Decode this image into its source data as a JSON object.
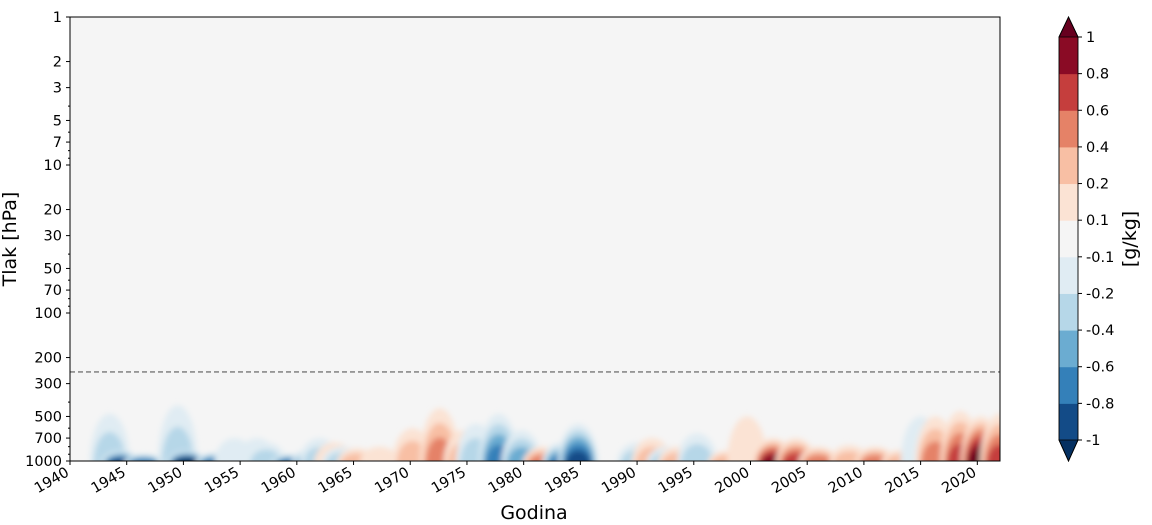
{
  "chart_data": {
    "type": "heatmap",
    "xlabel": "Godina",
    "ylabel": "Tlak [hPa]",
    "colorbar_label": "[g/kg]",
    "x_range": [
      1940,
      2022
    ],
    "x_ticks": [
      1940,
      1945,
      1950,
      1955,
      1960,
      1965,
      1970,
      1975,
      1980,
      1985,
      1990,
      1995,
      2000,
      2005,
      2010,
      2015,
      2020
    ],
    "y_scale": "log",
    "y_inverted": true,
    "y_range": [
      1000,
      1
    ],
    "y_ticks": [
      1,
      2,
      3,
      5,
      7,
      10,
      20,
      30,
      50,
      70,
      100,
      200,
      300,
      500,
      700,
      1000
    ],
    "reference_line_hpa": 250,
    "colorbar_levels": [
      -1,
      -0.8,
      -0.6,
      -0.4,
      -0.2,
      -0.1,
      0.1,
      0.2,
      0.4,
      0.6,
      0.8,
      1
    ],
    "colorbar_tick_labels": [
      "-1",
      "-0.8",
      "-0.6",
      "-0.4",
      "-0.2",
      "-0.1",
      "0.1",
      "0.2",
      "0.4",
      "0.6",
      "0.8",
      "1"
    ],
    "colorbar_extend": "both",
    "colors": [
      "#053061",
      "#134b87",
      "#3480b9",
      "#6bacd1",
      "#b6d7e8",
      "#e0ecf3",
      "#f5f5f5",
      "#fbe3d4",
      "#f8bfa4",
      "#e58267",
      "#c53e3d",
      "#8a0b25",
      "#67001f"
    ],
    "background_color": "#f5f5f5",
    "anomaly_events": [
      {
        "year": 1943.5,
        "top_hpa": 480,
        "value": -0.45
      },
      {
        "year": 1944.5,
        "top_hpa": 850,
        "value": -0.9
      },
      {
        "year": 1946.5,
        "top_hpa": 900,
        "value": -0.7
      },
      {
        "year": 1949.5,
        "top_hpa": 420,
        "value": -0.35
      },
      {
        "year": 1950.3,
        "top_hpa": 850,
        "value": -1.05
      },
      {
        "year": 1952.8,
        "top_hpa": 880,
        "value": -0.75
      },
      {
        "year": 1954.5,
        "top_hpa": 700,
        "value": -0.25
      },
      {
        "year": 1956.5,
        "top_hpa": 700,
        "value": -0.15
      },
      {
        "year": 1957.3,
        "top_hpa": 750,
        "value": -0.3
      },
      {
        "year": 1959.5,
        "top_hpa": 900,
        "value": -0.85
      },
      {
        "year": 1961.3,
        "top_hpa": 820,
        "value": -0.75
      },
      {
        "year": 1962.0,
        "top_hpa": 700,
        "value": -0.3
      },
      {
        "year": 1963.3,
        "top_hpa": 750,
        "value": 0.25
      },
      {
        "year": 1964.0,
        "top_hpa": 800,
        "value": -0.4
      },
      {
        "year": 1965.3,
        "top_hpa": 820,
        "value": 0.4
      },
      {
        "year": 1967.3,
        "top_hpa": 800,
        "value": 0.15
      },
      {
        "year": 1970.2,
        "top_hpa": 600,
        "value": 0.3
      },
      {
        "year": 1972.6,
        "top_hpa": 440,
        "value": 0.5
      },
      {
        "year": 1974.7,
        "top_hpa": 620,
        "value": 0.3
      },
      {
        "year": 1975.8,
        "top_hpa": 560,
        "value": -0.45
      },
      {
        "year": 1977.8,
        "top_hpa": 480,
        "value": -0.8
      },
      {
        "year": 1979.8,
        "top_hpa": 620,
        "value": -0.5
      },
      {
        "year": 1981.7,
        "top_hpa": 800,
        "value": 0.55
      },
      {
        "year": 1983.4,
        "top_hpa": 750,
        "value": -0.7
      },
      {
        "year": 1984.8,
        "top_hpa": 560,
        "value": -0.9
      },
      {
        "year": 1990.0,
        "top_hpa": 750,
        "value": -0.35
      },
      {
        "year": 1991.3,
        "top_hpa": 700,
        "value": 0.45
      },
      {
        "year": 1992.6,
        "top_hpa": 800,
        "value": -0.3
      },
      {
        "year": 1993.6,
        "top_hpa": 800,
        "value": 0.3
      },
      {
        "year": 1995.3,
        "top_hpa": 650,
        "value": -0.3
      },
      {
        "year": 1998.0,
        "top_hpa": 850,
        "value": 0.45
      },
      {
        "year": 1999.7,
        "top_hpa": 500,
        "value": 0.25
      },
      {
        "year": 2002.0,
        "top_hpa": 700,
        "value": 0.95
      },
      {
        "year": 2004.0,
        "top_hpa": 700,
        "value": 0.7
      },
      {
        "year": 2006.0,
        "top_hpa": 800,
        "value": 0.55
      },
      {
        "year": 2008.7,
        "top_hpa": 780,
        "value": 0.4
      },
      {
        "year": 2011.0,
        "top_hpa": 800,
        "value": 0.55
      },
      {
        "year": 2013.3,
        "top_hpa": 840,
        "value": 0.35
      },
      {
        "year": 2015.0,
        "top_hpa": 500,
        "value": -0.2
      },
      {
        "year": 2016.3,
        "top_hpa": 500,
        "value": 0.55
      },
      {
        "year": 2018.5,
        "top_hpa": 460,
        "value": 0.75
      },
      {
        "year": 2020.3,
        "top_hpa": 500,
        "value": 1.05
      },
      {
        "year": 2022.0,
        "top_hpa": 480,
        "value": 0.8
      }
    ]
  }
}
